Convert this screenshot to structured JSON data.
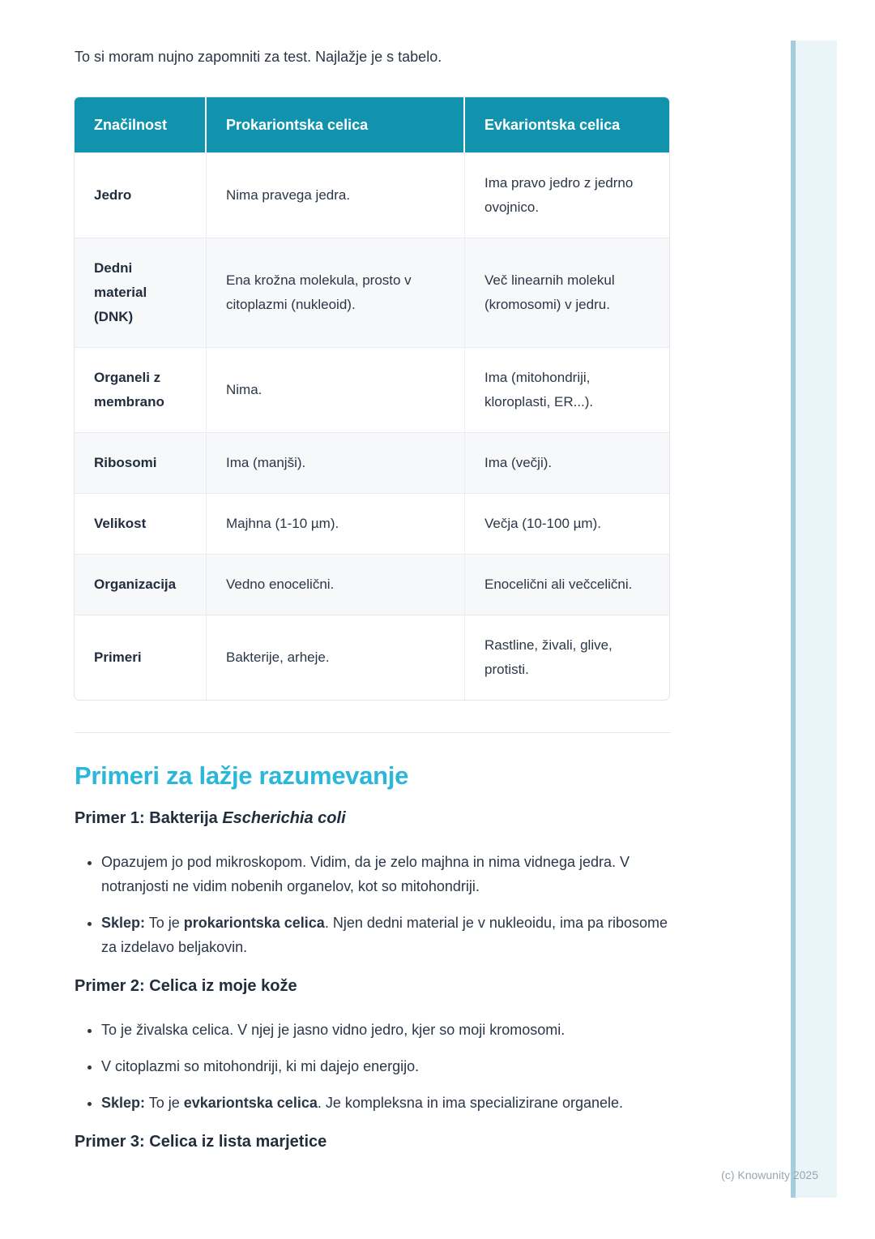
{
  "intro": "To si moram nujno zapomniti za test. Najlažje je s tabelo.",
  "watermark": "(c) Knowunity 2025",
  "colors": {
    "header_bg": "#1193ae",
    "accent": "#2ab7d9",
    "alt_row_bg": "#f7f8fa",
    "band_fill": "#e9f5f9",
    "band_edge": "#a5cddc"
  },
  "table": {
    "headers": [
      "Značilnost",
      "Prokariontska celica",
      "Evkariontska celica"
    ],
    "rows": [
      {
        "label": "Jedro",
        "prokaryote": "Nima pravega jedra.",
        "eukaryote": "Ima pravo jedro z jedrno ovojnico."
      },
      {
        "label": "Dedni material (DNK)",
        "prokaryote": "Ena krožna molekula, prosto v citoplazmi (nukleoid).",
        "eukaryote": "Več linearnih molekul (kromosomi) v jedru."
      },
      {
        "label": "Organeli z membrano",
        "prokaryote": "Nima.",
        "eukaryote": "Ima (mitohondriji, kloroplasti, ER...)."
      },
      {
        "label": "Ribosomi",
        "prokaryote": "Ima (manjši).",
        "eukaryote": "Ima (večji)."
      },
      {
        "label": "Velikost",
        "prokaryote": "Majhna (1-10 µm).",
        "eukaryote": "Večja (10-100 µm)."
      },
      {
        "label": "Organizacija",
        "prokaryote": "Vedno enocelični.",
        "eukaryote": "Enocelični ali večcelični."
      },
      {
        "label": "Primeri",
        "prokaryote": "Bakterije, arheje.",
        "eukaryote": "Rastline, živali, glive, protisti."
      }
    ]
  },
  "examples": {
    "title": "Primeri za lažje razumevanje",
    "sections": [
      {
        "heading": [
          {
            "text": "Primer 1: Bakterija ",
            "bold": true
          },
          {
            "text": "Escherichia coli",
            "bold": true,
            "italic": true
          }
        ],
        "bullets": [
          [
            {
              "text": "Opazujem jo pod mikroskopom. Vidim, da je zelo majhna in nima vidnega jedra. V notranjosti ne vidim nobenih organelov, kot so mitohondriji."
            }
          ],
          [
            {
              "text": "Sklep:",
              "bold": true
            },
            {
              "text": " To je "
            },
            {
              "text": "prokariontska celica",
              "bold": true
            },
            {
              "text": ". Njen dedni material je v nukleoidu, ima pa ribosome za izdelavo beljakovin."
            }
          ]
        ]
      },
      {
        "heading": [
          {
            "text": "Primer 2: Celica iz moje kože",
            "bold": true
          }
        ],
        "bullets": [
          [
            {
              "text": "To je živalska celica. V njej je jasno vidno jedro, kjer so moji kromosomi."
            }
          ],
          [
            {
              "text": "V citoplazmi so mitohondriji, ki mi dajejo energijo."
            }
          ],
          [
            {
              "text": "Sklep:",
              "bold": true
            },
            {
              "text": " To je "
            },
            {
              "text": "evkariontska celica",
              "bold": true
            },
            {
              "text": ". Je kompleksna in ima specializirane organele."
            }
          ]
        ]
      },
      {
        "heading": [
          {
            "text": "Primer 3: Celica iz lista marjetice",
            "bold": true
          }
        ],
        "bullets": []
      }
    ]
  }
}
